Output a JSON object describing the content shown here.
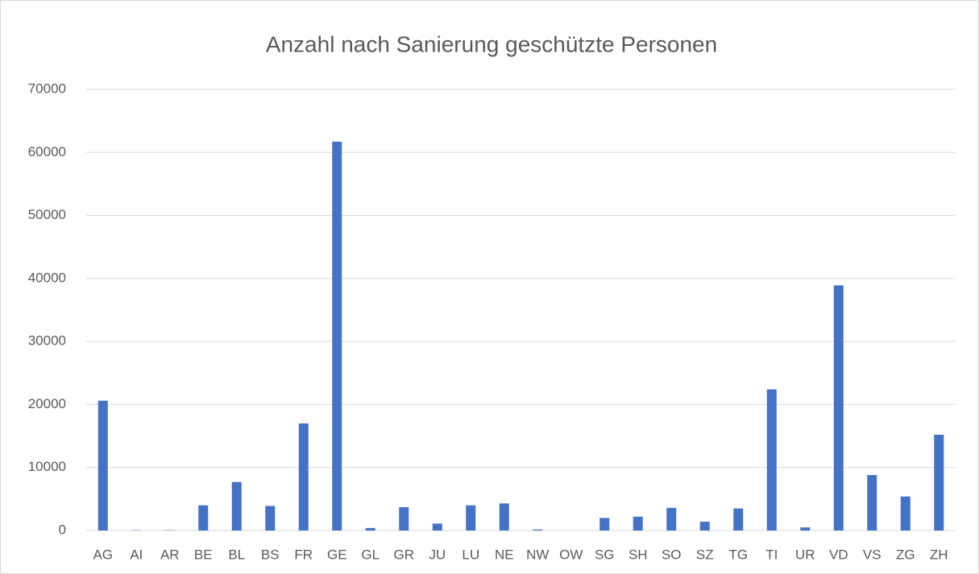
{
  "chart_data": {
    "type": "bar",
    "title": "Anzahl nach Sanierung geschützte Personen",
    "categories": [
      "AG",
      "AI",
      "AR",
      "BE",
      "BL",
      "BS",
      "FR",
      "GE",
      "GL",
      "GR",
      "JU",
      "LU",
      "NE",
      "NW",
      "OW",
      "SG",
      "SH",
      "SO",
      "SZ",
      "TG",
      "TI",
      "UR",
      "VD",
      "VS",
      "ZG",
      "ZH"
    ],
    "values": [
      20600,
      50,
      50,
      4000,
      7700,
      3900,
      17000,
      61700,
      400,
      3700,
      1100,
      4000,
      4300,
      150,
      0,
      2000,
      2200,
      3600,
      1400,
      3500,
      22400,
      500,
      38900,
      8800,
      5400,
      15200
    ],
    "color": "#4472c4",
    "ylim": [
      0,
      70000
    ],
    "yticks": [
      0,
      10000,
      20000,
      30000,
      40000,
      50000,
      60000,
      70000
    ],
    "grid": true
  }
}
